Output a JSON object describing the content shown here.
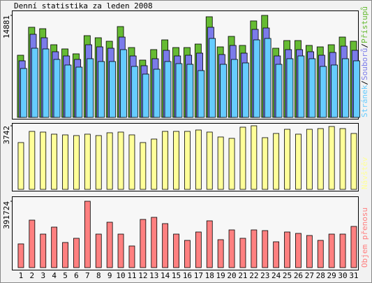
{
  "chart_data": [
    {
      "type": "bar",
      "title": "Denní statistika za leden 2008",
      "legend_separator": "/",
      "ylim": [
        0,
        14881
      ],
      "yticks": [
        14881
      ],
      "series": [
        {
          "name": "Přístupů",
          "color": "#66bb33",
          "values": [
            9070,
            13150,
            12940,
            10600,
            9990,
            9275,
            11925,
            11620,
            11110,
            13250,
            10190,
            8360,
            9890,
            11310,
            10190,
            10190,
            10700,
            14680,
            10290,
            11820,
            10500,
            14070,
            14881,
            10090,
            11210,
            11210,
            10500,
            10290,
            10600,
            11720,
            11110
          ]
        },
        {
          "name": "Souborů",
          "color": "#7b7bea",
          "values": [
            8254,
            12126,
            11617,
            9579,
            8967,
            8458,
            10598,
            10292,
            10088,
            11719,
            8967,
            7541,
            8560,
            9782,
            8967,
            9069,
            9375,
            13145,
            9171,
            10496,
            9375,
            12839,
            13043,
            8967,
            9884,
            9884,
            9579,
            9069,
            9477,
            10394,
            9782
          ]
        },
        {
          "name": "Stránek",
          "color": "#66ccff",
          "values": [
            7133,
            10088,
            9986,
            8458,
            7643,
            7337,
            8560,
            8152,
            8152,
            9884,
            7439,
            6318,
            7031,
            8152,
            7846,
            7744,
            6827,
            11515,
            7744,
            8458,
            7948,
            11311,
            11515,
            7744,
            8560,
            8967,
            8560,
            7439,
            7643,
            8560,
            8254
          ]
        }
      ]
    },
    {
      "type": "bar",
      "ylim": [
        0,
        3742
      ],
      "yticks": [
        3742
      ],
      "series": [
        {
          "name": "Návštěv",
          "color": "#ffff99",
          "values": [
            2755,
            3413,
            3372,
            3249,
            3207,
            3166,
            3249,
            3166,
            3331,
            3372,
            3207,
            2755,
            2961,
            3413,
            3413,
            3413,
            3495,
            3372,
            3084,
            3002,
            3660,
            3742,
            3043,
            3290,
            3536,
            3249,
            3536,
            3577,
            3700,
            3577,
            3290
          ]
        }
      ]
    },
    {
      "type": "bar",
      "ylim": [
        0,
        391724
      ],
      "yticks": [
        391724
      ],
      "categories": [
        "1",
        "2",
        "3",
        "4",
        "5",
        "6",
        "7",
        "8",
        "9",
        "10",
        "11",
        "12",
        "13",
        "14",
        "15",
        "16",
        "17",
        "18",
        "19",
        "20",
        "21",
        "22",
        "23",
        "24",
        "25",
        "26",
        "27",
        "28",
        "29",
        "30",
        "31"
      ],
      "highlight_indices": [
        4,
        5,
        11,
        12,
        18,
        19,
        25,
        26
      ],
      "highlight_color": "#66aa22",
      "series": [
        {
          "name": "Objem přenosu",
          "color": "#ff8080",
          "values": [
            140190,
            280380,
            197920,
            239150,
            148440,
            173180,
            391724,
            197920,
            268010,
            197920,
            127820,
            284500,
            296870,
            259760,
            197920,
            160810,
            210280,
            276260,
            164930,
            222660,
            173180,
            222660,
            218530,
            152560,
            210280,
            202040,
            189670,
            160810,
            197920,
            197920,
            243270
          ]
        }
      ]
    }
  ]
}
